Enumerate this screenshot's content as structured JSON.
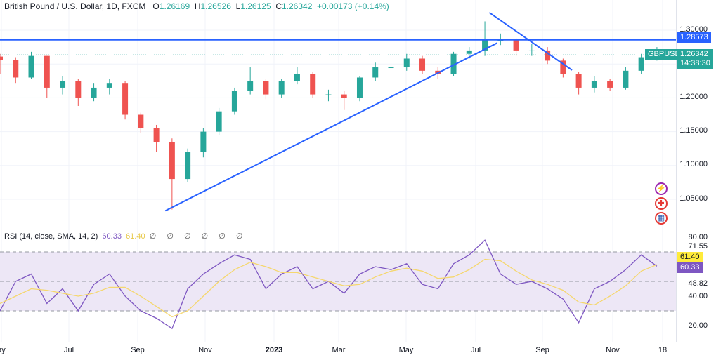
{
  "header": {
    "title": "British Pound / U.S. Dollar, 1D, FXCM",
    "open_label": "O",
    "open": "1.26169",
    "high_label": "H",
    "high": "1.26526",
    "low_label": "L",
    "low": "1.26125",
    "close_label": "C",
    "close": "1.26342",
    "change": "+0.00173 (+0.14%)"
  },
  "rsi_legend": {
    "title": "RSI (14, close, SMA, 14, 2)",
    "rsi": "60.33",
    "sma": "61.40",
    "empty": [
      "∅",
      "∅",
      "∅",
      "∅",
      "∅",
      "∅"
    ]
  },
  "price_axis": {
    "ticks": [
      "1.30000",
      "1.20000",
      "1.15000",
      "1.10000",
      "1.05000"
    ],
    "hline_label": "1.28573",
    "symbol": "GBPUSD",
    "last_price": "1.26342",
    "countdown": "14:38:30"
  },
  "rsi_axis": {
    "ticks": [
      "80.00",
      "71.55",
      "48.82",
      "40.00",
      "20.00"
    ],
    "sma_label": "61.40",
    "rsi_label": "60.33"
  },
  "time_axis": [
    "ay",
    "Jul",
    "Sep",
    "Nov",
    "2023",
    "Mar",
    "May",
    "Jul",
    "Sep",
    "Nov",
    "18"
  ],
  "icons": [
    "lightning-icon",
    "uk-flag-icon",
    "us-flag-icon"
  ],
  "colors": {
    "up": "#26a69a",
    "down": "#ef5350",
    "line": "#2962ff",
    "rsi": "#7e57c2",
    "sma": "#f5d76e",
    "band": "#ede7f6"
  },
  "chart_data": [
    {
      "type": "candlestick",
      "symbol": "GBPUSD",
      "ylim": [
        1.01,
        1.33
      ],
      "dates": [
        "2022-05-01",
        "2022-05-15",
        "2022-05-29",
        "2022-06-12",
        "2022-06-26",
        "2022-07-10",
        "2022-07-24",
        "2022-08-07",
        "2022-08-21",
        "2022-09-04",
        "2022-09-18",
        "2022-10-02",
        "2022-10-16",
        "2022-10-30",
        "2022-11-13",
        "2022-11-27",
        "2022-12-11",
        "2022-12-25",
        "2023-01-08",
        "2023-01-22",
        "2023-02-05",
        "2023-02-19",
        "2023-03-05",
        "2023-03-19",
        "2023-04-02",
        "2023-04-16",
        "2023-04-30",
        "2023-05-14",
        "2023-05-28",
        "2023-06-11",
        "2023-06-25",
        "2023-07-09",
        "2023-07-23",
        "2023-08-06",
        "2023-08-20",
        "2023-09-03",
        "2023-09-17",
        "2023-10-01",
        "2023-10-15",
        "2023-10-29",
        "2023-11-12",
        "2023-11-26",
        "2023-12-10"
      ],
      "close": [
        1.256,
        1.23,
        1.262,
        1.215,
        1.225,
        1.2,
        1.215,
        1.222,
        1.175,
        1.155,
        1.135,
        1.08,
        1.12,
        1.15,
        1.18,
        1.21,
        1.225,
        1.205,
        1.225,
        1.235,
        1.205,
        1.205,
        1.2,
        1.23,
        1.245,
        1.245,
        1.258,
        1.24,
        1.235,
        1.265,
        1.27,
        1.285,
        1.285,
        1.27,
        1.27,
        1.255,
        1.235,
        1.215,
        1.225,
        1.215,
        1.24,
        1.26,
        1.26342
      ],
      "high": [
        1.265,
        1.26,
        1.268,
        1.262,
        1.232,
        1.228,
        1.222,
        1.228,
        1.225,
        1.178,
        1.16,
        1.14,
        1.125,
        1.155,
        1.185,
        1.215,
        1.245,
        1.228,
        1.228,
        1.245,
        1.238,
        1.212,
        1.21,
        1.232,
        1.252,
        1.252,
        1.265,
        1.262,
        1.245,
        1.268,
        1.275,
        1.313,
        1.295,
        1.288,
        1.28,
        1.275,
        1.258,
        1.238,
        1.232,
        1.228,
        1.245,
        1.265,
        1.275
      ],
      "low": [
        1.235,
        1.222,
        1.228,
        1.2,
        1.205,
        1.188,
        1.195,
        1.205,
        1.168,
        1.148,
        1.12,
        1.035,
        1.075,
        1.112,
        1.145,
        1.175,
        1.205,
        1.198,
        1.2,
        1.22,
        1.2,
        1.195,
        1.182,
        1.195,
        1.225,
        1.235,
        1.24,
        1.235,
        1.228,
        1.232,
        1.258,
        1.262,
        1.278,
        1.262,
        1.262,
        1.25,
        1.23,
        1.205,
        1.208,
        1.21,
        1.212,
        1.235,
        1.255
      ],
      "hlines": [
        1.28573
      ],
      "trendlines": [
        {
          "from": [
            "2022-09-26",
            1.033
          ],
          "to": [
            "2023-07-20",
            1.281
          ]
        },
        {
          "from": [
            "2023-07-13",
            1.326
          ],
          "to": [
            "2023-09-25",
            1.241
          ]
        }
      ]
    },
    {
      "type": "line",
      "title": "RSI (14, close, SMA, 14, 2)",
      "ylim": [
        10,
        90
      ],
      "bands": [
        30,
        50,
        70
      ],
      "series": [
        {
          "name": "RSI",
          "values": [
            30,
            50,
            55,
            35,
            45,
            30,
            48,
            55,
            40,
            30,
            25,
            18,
            45,
            55,
            62,
            68,
            65,
            45,
            55,
            60,
            45,
            50,
            42,
            55,
            60,
            58,
            62,
            48,
            45,
            62,
            68,
            78,
            55,
            48,
            50,
            45,
            38,
            22,
            45,
            50,
            58,
            68,
            60.33
          ]
        },
        {
          "name": "SMA",
          "values": [
            35,
            40,
            45,
            44,
            42,
            40,
            42,
            46,
            46,
            40,
            33,
            26,
            30,
            40,
            50,
            58,
            63,
            60,
            56,
            56,
            53,
            50,
            47,
            48,
            53,
            57,
            59,
            57,
            52,
            53,
            58,
            65,
            64,
            57,
            51,
            48,
            44,
            36,
            34,
            40,
            47,
            57,
            61.4
          ]
        }
      ]
    }
  ]
}
